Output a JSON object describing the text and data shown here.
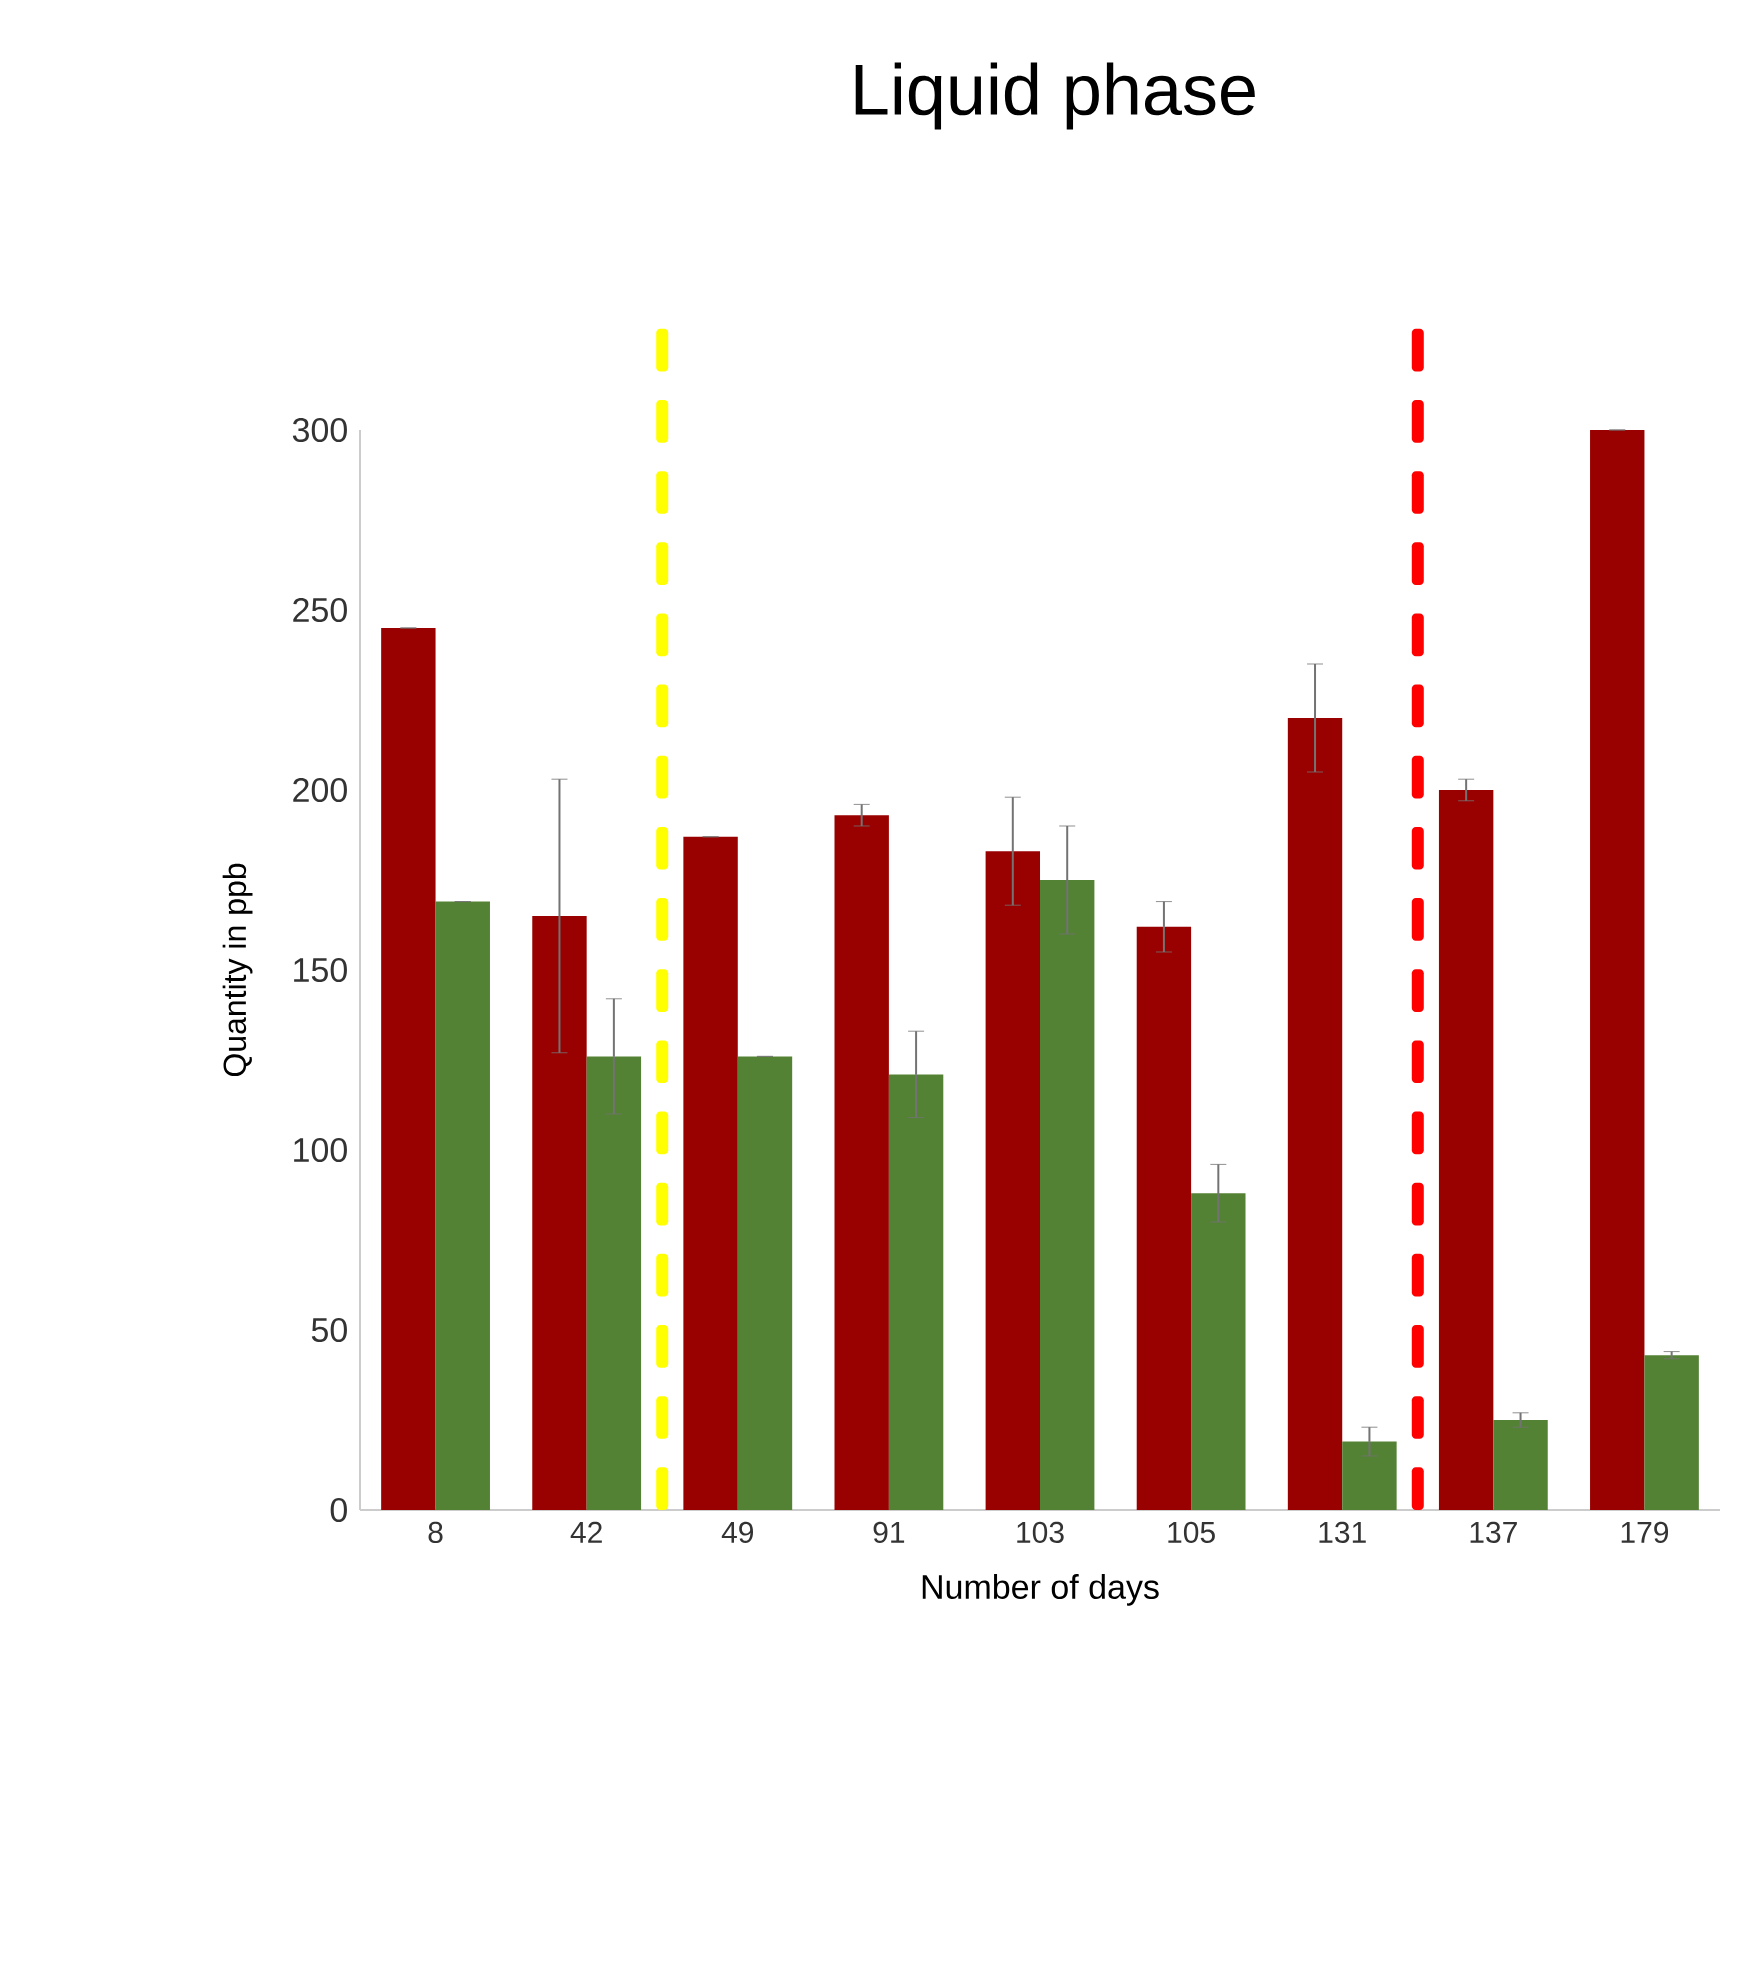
{
  "chart_data": {
    "type": "bar",
    "title": "Liquid phase",
    "xlabel": "Number of days",
    "ylabel": "Quantity in ppb",
    "categories": [
      "8",
      "42",
      "49",
      "91",
      "103",
      "105",
      "131",
      "137",
      "179"
    ],
    "series": [
      {
        "color": "#990000",
        "values": [
          245,
          165,
          187,
          193,
          183,
          162,
          220,
          200,
          300
        ],
        "errors": [
          null,
          38,
          null,
          3,
          15,
          7,
          15,
          3,
          null
        ]
      },
      {
        "color": "#548235",
        "values": [
          169,
          126,
          126,
          121,
          175,
          88,
          19,
          25,
          43
        ],
        "errors": [
          null,
          16,
          null,
          12,
          15,
          8,
          4,
          2,
          1
        ]
      }
    ],
    "ylim": [
      0,
      300
    ],
    "yticks": [
      0,
      50,
      100,
      150,
      200,
      250,
      300
    ],
    "grid": false
  }
}
